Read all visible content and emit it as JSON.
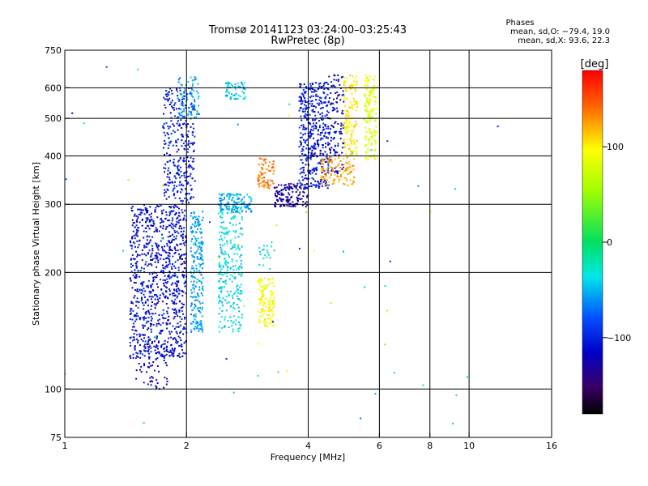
{
  "header": {
    "title_line1": "Tromsø 20141123 03:24:00–03:25:43",
    "title_line2": "RwPretec (8p)",
    "stats_title": "Phases",
    "stats_o": "mean, sd,O: −79.4, 19.0",
    "stats_x": "mean, sd,X:  93.6, 22.3"
  },
  "colorbar": {
    "unit": "[deg]",
    "range": [
      -180,
      180
    ],
    "tick_values": [
      100,
      0,
      -100
    ],
    "tick_labels": [
      "100",
      "0",
      "−100"
    ]
  },
  "chart_data": {
    "type": "scatter",
    "xlabel": "Frequency [MHz]",
    "ylabel": "Stationary phase Virtual Height [km]",
    "x_scale": "log2",
    "y_scale": "log",
    "xlim": [
      1,
      16
    ],
    "ylim": [
      75,
      750
    ],
    "x_ticks": [
      1,
      2,
      4,
      6,
      8,
      10,
      16
    ],
    "x_tick_labels": [
      "1",
      "2",
      "4",
      "6",
      "8",
      "10",
      "16"
    ],
    "x_grid": [
      2,
      4,
      6,
      8,
      10
    ],
    "y_ticks": [
      75,
      100,
      200,
      300,
      400,
      500,
      600,
      750
    ],
    "y_tick_labels": [
      "75",
      "100",
      "200",
      "300",
      "400",
      "500",
      "600",
      "750"
    ],
    "y_grid": [
      100,
      200,
      300,
      400,
      500,
      600
    ],
    "grid": true,
    "color_variable": "phase [deg]",
    "clusters": [
      {
        "f": [
          1.45,
          2.0
        ],
        "h": [
          120,
          300
        ],
        "phase": [
          -130,
          -90
        ],
        "n": 900
      },
      {
        "f": [
          1.5,
          1.8
        ],
        "h": [
          100,
          130
        ],
        "phase": [
          -130,
          -100
        ],
        "n": 70
      },
      {
        "f": [
          1.75,
          2.1
        ],
        "h": [
          300,
          600
        ],
        "phase": [
          -120,
          -90
        ],
        "n": 300
      },
      {
        "f": [
          1.9,
          2.15
        ],
        "h": [
          500,
          640
        ],
        "phase": [
          -80,
          -40
        ],
        "n": 80
      },
      {
        "f": [
          2.05,
          2.2
        ],
        "h": [
          140,
          290
        ],
        "phase": [
          -75,
          -40
        ],
        "n": 220
      },
      {
        "f": [
          2.4,
          2.75
        ],
        "h": [
          140,
          300
        ],
        "phase": [
          -55,
          -25
        ],
        "n": 260
      },
      {
        "f": [
          2.4,
          2.9
        ],
        "h": [
          285,
          320
        ],
        "phase": [
          -70,
          -40
        ],
        "n": 120
      },
      {
        "f": [
          2.5,
          2.8
        ],
        "h": [
          560,
          620
        ],
        "phase": [
          -60,
          -30
        ],
        "n": 60
      },
      {
        "f": [
          3.0,
          3.3
        ],
        "h": [
          145,
          195
        ],
        "phase": [
          80,
          110
        ],
        "n": 130
      },
      {
        "f": [
          3.0,
          3.3
        ],
        "h": [
          200,
          240
        ],
        "phase": [
          -50,
          -20
        ],
        "n": 20
      },
      {
        "f": [
          3.0,
          3.3
        ],
        "h": [
          330,
          400
        ],
        "phase": [
          120,
          160
        ],
        "n": 70
      },
      {
        "f": [
          3.3,
          4.0
        ],
        "h": [
          295,
          340
        ],
        "phase": [
          -150,
          -110
        ],
        "n": 140
      },
      {
        "f": [
          3.8,
          4.5
        ],
        "h": [
          330,
          620
        ],
        "phase": [
          -120,
          -90
        ],
        "n": 420
      },
      {
        "f": [
          4.5,
          4.9
        ],
        "h": [
          360,
          650
        ],
        "phase": [
          -130,
          -100
        ],
        "n": 120
      },
      {
        "f": [
          4.3,
          5.2
        ],
        "h": [
          335,
          400
        ],
        "phase": [
          110,
          140
        ],
        "n": 110
      },
      {
        "f": [
          4.9,
          5.3
        ],
        "h": [
          400,
          650
        ],
        "phase": [
          90,
          120
        ],
        "n": 140
      },
      {
        "f": [
          5.5,
          5.9
        ],
        "h": [
          390,
          650
        ],
        "phase": [
          70,
          100
        ],
        "n": 140
      },
      {
        "f": [
          1.0,
          12.0
        ],
        "h": [
          80,
          700
        ],
        "phase": [
          -120,
          120
        ],
        "n": 60
      }
    ]
  }
}
